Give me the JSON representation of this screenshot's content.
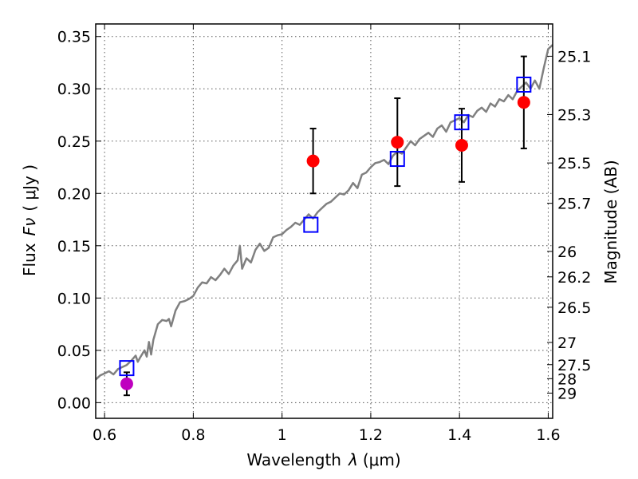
{
  "chart_data": {
    "type": "scatter",
    "xlabel_prefix": "Wavelength",
    "xlabel_symbol": "λ",
    "xlabel_unit": "(μm)",
    "ylabel_prefix": "Flux",
    "ylabel_symbol": "Fν",
    "ylabel_unit": "( μJy )",
    "y2label": "Magnitude (AB)",
    "xlim": [
      0.58,
      1.61
    ],
    "ylim": [
      -0.015,
      0.362
    ],
    "x_ticks": [
      0.6,
      0.8,
      1.0,
      1.2,
      1.4,
      1.6
    ],
    "x_tick_labels": [
      "0.6",
      "0.8",
      "1",
      "1.2",
      "1.4",
      "1.6"
    ],
    "y_ticks": [
      0.0,
      0.05,
      0.1,
      0.15,
      0.2,
      0.25,
      0.3,
      0.35
    ],
    "y_tick_labels": [
      "0.00",
      "0.05",
      "0.10",
      "0.15",
      "0.20",
      "0.25",
      "0.30",
      "0.35"
    ],
    "mag_ticks": [
      25.1,
      25.3,
      25.5,
      25.7,
      26,
      26.2,
      26.5,
      27,
      27.5,
      28,
      29
    ],
    "mag_tick_labels": [
      "25.1",
      "25.3",
      "25.5",
      "25.7",
      "26",
      "26.2",
      "26.5",
      "27",
      "27.5",
      "28",
      "29"
    ],
    "grid": true,
    "series": [
      {
        "kind": "model_spectrum",
        "color": "#808080",
        "x": [
          0.58,
          0.59,
          0.6,
          0.61,
          0.62,
          0.63,
          0.64,
          0.65,
          0.66,
          0.67,
          0.675,
          0.68,
          0.69,
          0.695,
          0.7,
          0.705,
          0.71,
          0.72,
          0.73,
          0.74,
          0.745,
          0.75,
          0.76,
          0.77,
          0.78,
          0.79,
          0.8,
          0.81,
          0.82,
          0.83,
          0.84,
          0.85,
          0.86,
          0.87,
          0.88,
          0.89,
          0.9,
          0.905,
          0.91,
          0.92,
          0.93,
          0.94,
          0.95,
          0.96,
          0.97,
          0.98,
          0.99,
          1.0,
          1.01,
          1.02,
          1.03,
          1.04,
          1.05,
          1.06,
          1.07,
          1.08,
          1.09,
          1.1,
          1.11,
          1.12,
          1.13,
          1.14,
          1.15,
          1.16,
          1.17,
          1.18,
          1.19,
          1.2,
          1.21,
          1.22,
          1.23,
          1.24,
          1.25,
          1.26,
          1.27,
          1.28,
          1.29,
          1.3,
          1.31,
          1.32,
          1.33,
          1.34,
          1.35,
          1.36,
          1.37,
          1.38,
          1.39,
          1.4,
          1.41,
          1.42,
          1.43,
          1.44,
          1.45,
          1.46,
          1.47,
          1.48,
          1.49,
          1.5,
          1.51,
          1.52,
          1.53,
          1.54,
          1.55,
          1.56,
          1.57,
          1.58,
          1.59,
          1.6,
          1.61
        ],
        "y": [
          0.022,
          0.026,
          0.028,
          0.03,
          0.027,
          0.032,
          0.034,
          0.036,
          0.04,
          0.045,
          0.039,
          0.043,
          0.05,
          0.044,
          0.058,
          0.046,
          0.06,
          0.075,
          0.079,
          0.078,
          0.08,
          0.073,
          0.088,
          0.096,
          0.097,
          0.099,
          0.102,
          0.11,
          0.115,
          0.114,
          0.12,
          0.117,
          0.122,
          0.128,
          0.123,
          0.131,
          0.136,
          0.15,
          0.128,
          0.138,
          0.134,
          0.146,
          0.152,
          0.145,
          0.148,
          0.158,
          0.16,
          0.161,
          0.165,
          0.168,
          0.172,
          0.17,
          0.175,
          0.18,
          0.176,
          0.182,
          0.186,
          0.19,
          0.192,
          0.196,
          0.2,
          0.199,
          0.203,
          0.21,
          0.205,
          0.218,
          0.22,
          0.225,
          0.229,
          0.23,
          0.232,
          0.228,
          0.236,
          0.24,
          0.238,
          0.244,
          0.25,
          0.246,
          0.252,
          0.255,
          0.258,
          0.254,
          0.262,
          0.265,
          0.259,
          0.268,
          0.27,
          0.272,
          0.268,
          0.275,
          0.273,
          0.279,
          0.282,
          0.278,
          0.286,
          0.283,
          0.29,
          0.288,
          0.294,
          0.29,
          0.298,
          0.302,
          0.306,
          0.3,
          0.308,
          0.3,
          0.32,
          0.338,
          0.342
        ]
      },
      {
        "kind": "observed",
        "color": "#ff0000",
        "x": [
          1.07,
          1.26,
          1.405,
          1.545
        ],
        "y": [
          0.231,
          0.249,
          0.246,
          0.287
        ],
        "yerr": [
          0.031,
          0.042,
          0.035,
          0.044
        ]
      },
      {
        "kind": "observed_dropout",
        "color": "#bf00bf",
        "x": [
          0.65
        ],
        "y": [
          0.018
        ],
        "yerr": [
          0.011
        ]
      },
      {
        "kind": "model_photometry",
        "color": "#0000ff",
        "x": [
          0.65,
          1.065,
          1.26,
          1.405,
          1.545
        ],
        "y": [
          0.033,
          0.17,
          0.233,
          0.268,
          0.304
        ]
      }
    ]
  }
}
